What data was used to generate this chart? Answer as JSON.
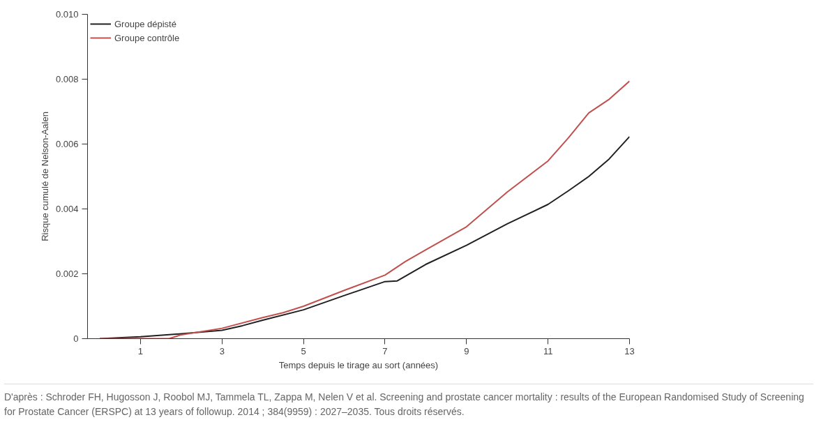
{
  "chart_data": {
    "type": "line",
    "xlabel": "Temps depuis le tirage au sort (années)",
    "ylabel": "Risque cumulé de Nelson-Aalen",
    "series": [
      {
        "name": "Groupe dépisté",
        "color": "#231f20",
        "x": [
          0,
          1,
          2,
          3,
          3.5,
          4,
          5,
          6,
          7,
          7.3,
          8,
          9,
          10,
          11,
          11.5,
          12,
          12.5,
          13
        ],
        "values": [
          0,
          6e-05,
          0.00015,
          0.00026,
          0.0004,
          0.00057,
          0.00089,
          0.00133,
          0.00176,
          0.00178,
          0.00229,
          0.00288,
          0.00354,
          0.00414,
          0.00456,
          0.005,
          0.00554,
          0.00623
        ]
      },
      {
        "name": "Groupe contrôle",
        "color": "#c0504d",
        "x": [
          0,
          1,
          1.7,
          2,
          3,
          4,
          4.5,
          5,
          6,
          7,
          7.5,
          8,
          9,
          10,
          11,
          11.5,
          12,
          12.5,
          13
        ],
        "values": [
          0,
          0,
          0,
          0.00012,
          0.00032,
          0.00065,
          0.0008,
          0.001,
          0.00149,
          0.00196,
          0.00238,
          0.00274,
          0.00345,
          0.00452,
          0.00548,
          0.00619,
          0.00696,
          0.00738,
          0.00794
        ]
      }
    ],
    "xlim": [
      -0.3,
      13
    ],
    "ylim": [
      0,
      0.01
    ],
    "xticks": [
      1,
      3,
      5,
      7,
      9,
      11,
      13
    ],
    "yticks": [
      0,
      0.002,
      0.004,
      0.006,
      0.008,
      {
        "value": 0.01,
        "label": "0.010"
      }
    ],
    "grid": false,
    "legend": "top left",
    "line_style": "solid",
    "marker": "none",
    "annotations": [
      "D'après : Schroder FH, Hugosson J, Roobol MJ, Tammela TL, Zappa M, Nelen V et al. Screening and prostate cancer mortality : results of the European Randomised Study of Screening for Prostate Cancer (ERSPC) at 13 years of followup. 2014 ; 384(9959) : 2027–2035. Tous droits réservés."
    ]
  }
}
